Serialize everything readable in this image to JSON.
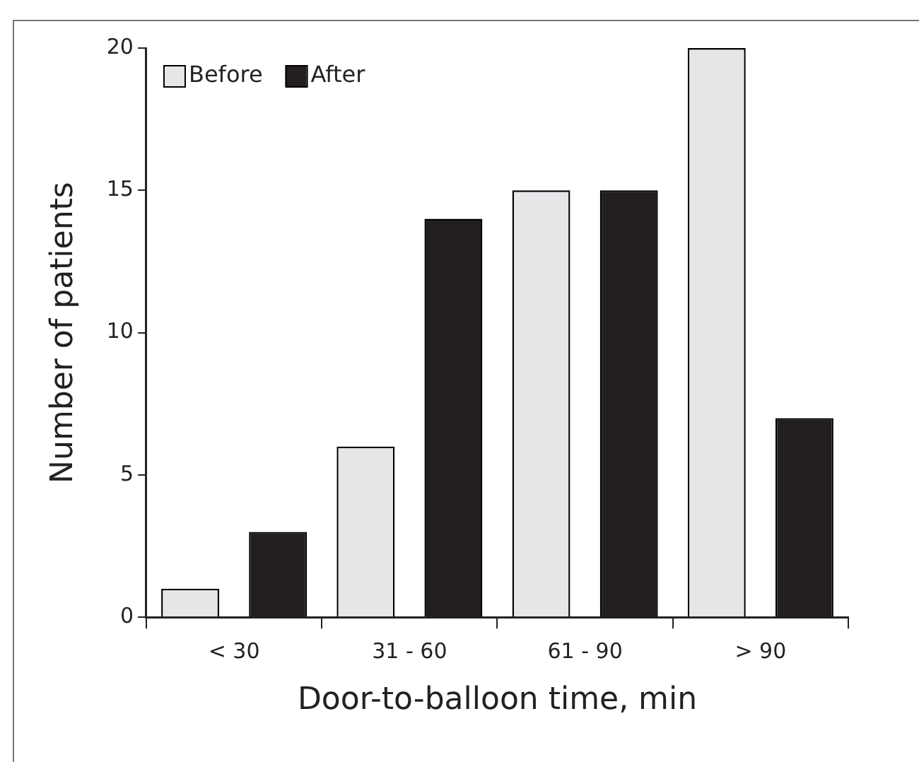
{
  "chart_data": {
    "type": "bar",
    "xlabel": "Door-to-balloon time, min",
    "ylabel": "Number of patients",
    "categories": [
      "< 30",
      "31 - 60",
      "61 - 90",
      "> 90"
    ],
    "series": [
      {
        "name": "Before",
        "color": "#e5e6e8",
        "values": [
          1,
          6,
          15,
          20
        ]
      },
      {
        "name": "After",
        "color": "#231f20",
        "values": [
          3,
          14,
          15,
          7
        ]
      }
    ],
    "ylim": [
      0,
      20
    ],
    "yticks": [
      0,
      5,
      10,
      15,
      20
    ],
    "grid": false,
    "legend": "top left"
  }
}
